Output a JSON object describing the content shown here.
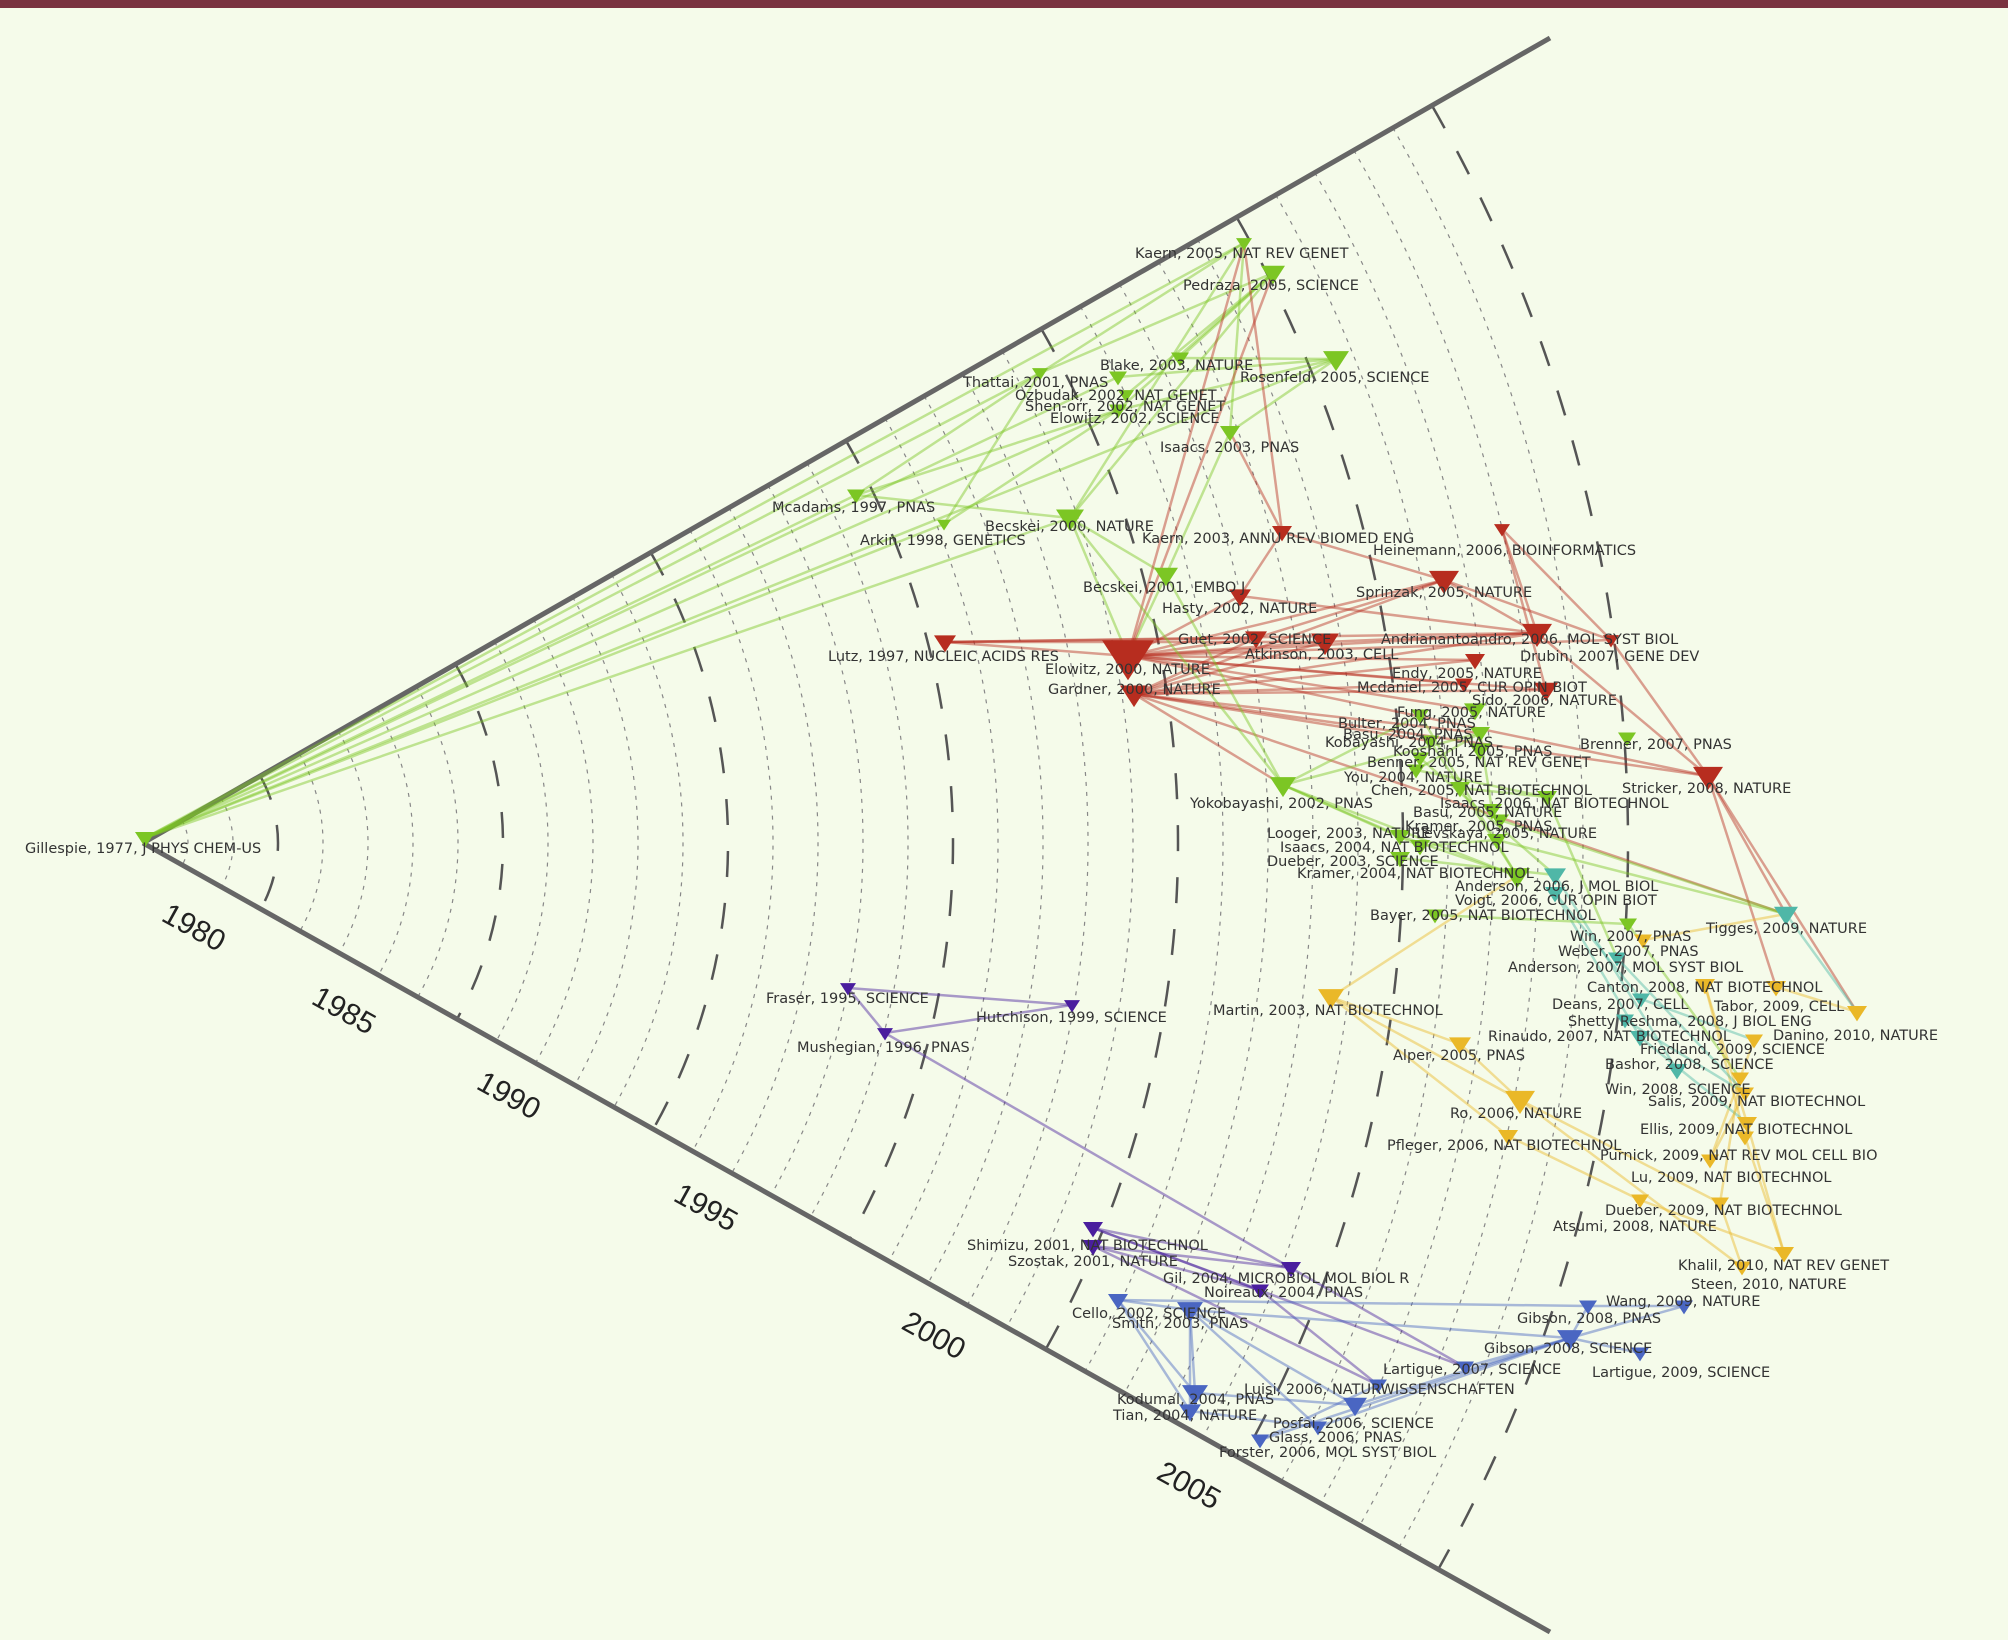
{
  "axis": {
    "year_labels": [
      "1980",
      "1985",
      "1990",
      "1995",
      "2000",
      "2005"
    ],
    "year_start": 1977,
    "year_end": 2010
  },
  "colors": {
    "green": "#7cc624",
    "red": "#b72d1f",
    "yellow": "#eab828",
    "teal": "#4fb7a7",
    "blue": "#4a66c2",
    "purple": "#4a1e9e",
    "bar": "#7a3340",
    "background": "#f5fbea"
  },
  "nodes": [
    {
      "id": "gillespie",
      "label": "Gillespie, 1977, J PHYS CHEM-US",
      "year": 1977,
      "group": "green"
    },
    {
      "id": "kaern05",
      "label": "Kaern, 2005, NAT REV GENET",
      "year": 2005,
      "group": "green"
    },
    {
      "id": "pedraza05",
      "label": "Pedraza, 2005, SCIENCE",
      "year": 2005,
      "group": "green"
    },
    {
      "id": "blake03",
      "label": "Blake, 2003, NATURE",
      "year": 2003,
      "group": "green"
    },
    {
      "id": "rosenfeld05",
      "label": "Rosenfeld, 2005, SCIENCE",
      "year": 2005,
      "group": "green"
    },
    {
      "id": "thattai01",
      "label": "Thattai, 2001, PNAS",
      "year": 2001,
      "group": "green"
    },
    {
      "id": "ozbudak02",
      "label": "Ozbudak, 2002, NAT GENET",
      "year": 2002,
      "group": "green"
    },
    {
      "id": "shenorr02",
      "label": "Shen-orr, 2002, NAT GENET",
      "year": 2002,
      "group": "green"
    },
    {
      "id": "elowitz02",
      "label": "Elowitz, 2002, SCIENCE",
      "year": 2002,
      "group": "green"
    },
    {
      "id": "isaacs03",
      "label": "Isaacs, 2003, PNAS",
      "year": 2003,
      "group": "green"
    },
    {
      "id": "mcadams97",
      "label": "Mcadams, 1997, PNAS",
      "year": 1997,
      "group": "green"
    },
    {
      "id": "becskei00",
      "label": "Becskei, 2000, NATURE",
      "year": 2000,
      "group": "green"
    },
    {
      "id": "arkin98",
      "label": "Arkin, 1998, GENETICS",
      "year": 1998,
      "group": "green"
    },
    {
      "id": "kaern03",
      "label": "Kaern, 2003, ANNU REV BIOMED ENG",
      "year": 2003,
      "group": "red"
    },
    {
      "id": "heinemann06",
      "label": "Heinemann, 2006, BIOINFORMATICS",
      "year": 2006,
      "group": "red"
    },
    {
      "id": "becskei01",
      "label": "Becskei, 2001, EMBO J",
      "year": 2001,
      "group": "green"
    },
    {
      "id": "sprinzak05",
      "label": "Sprinzak, 2005, NATURE",
      "year": 2005,
      "group": "red"
    },
    {
      "id": "hasty02",
      "label": "Hasty, 2002, NATURE",
      "year": 2002,
      "group": "red"
    },
    {
      "id": "guet02",
      "label": "Guet, 2002, SCIENCE",
      "year": 2002,
      "group": "red"
    },
    {
      "id": "andrianantoandro06",
      "label": "Andrianantoandro, 2006, MOL SYST BIOL",
      "year": 2006,
      "group": "red"
    },
    {
      "id": "lutz97",
      "label": "Lutz, 1997, NUCLEIC ACIDS RES",
      "year": 1997,
      "group": "red"
    },
    {
      "id": "atkinson03",
      "label": "Atkinson, 2003, CELL",
      "year": 2003,
      "group": "red"
    },
    {
      "id": "drubin07",
      "label": "Drubin, 2007, GENE DEV",
      "year": 2007,
      "group": "red"
    },
    {
      "id": "elowitz00",
      "label": "Elowitz, 2000, NATURE",
      "year": 2000,
      "group": "red"
    },
    {
      "id": "endy05",
      "label": "Endy, 2005, NATURE",
      "year": 2005,
      "group": "red"
    },
    {
      "id": "gardner00",
      "label": "Gardner, 2000, NATURE",
      "year": 2000,
      "group": "red"
    },
    {
      "id": "mcdaniel05",
      "label": "Mcdaniel, 2005, CUR OPIN BIOT",
      "year": 2005,
      "group": "red"
    },
    {
      "id": "sido06",
      "label": "Sido, 2006, NATURE",
      "year": 2006,
      "group": "red"
    },
    {
      "id": "fung05",
      "label": "Fung, 2005, NATURE",
      "year": 2005,
      "group": "green"
    },
    {
      "id": "bulter04",
      "label": "Bulter, 2004, PNAS",
      "year": 2004,
      "group": "green"
    },
    {
      "id": "basu04",
      "label": "Basu, 2004, PNAS",
      "year": 2004,
      "group": "green"
    },
    {
      "id": "kobayashi04",
      "label": "Kobayashi, 2004, PNAS",
      "year": 2004,
      "group": "green"
    },
    {
      "id": "kooshani05",
      "label": "Kooshani, 2005, PNAS",
      "year": 2005,
      "group": "green"
    },
    {
      "id": "brenner07",
      "label": "Brenner, 2007, PNAS",
      "year": 2007,
      "group": "green"
    },
    {
      "id": "benner05",
      "label": "Benner, 2005, NAT REV GENET",
      "year": 2005,
      "group": "green"
    },
    {
      "id": "you04",
      "label": "You, 2004, NATURE",
      "year": 2004,
      "group": "green"
    },
    {
      "id": "chen05",
      "label": "Chen, 2005, NAT BIOTECHNOL",
      "year": 2005,
      "group": "green"
    },
    {
      "id": "stricker08",
      "label": "Stricker, 2008, NATURE",
      "year": 2008,
      "group": "red"
    },
    {
      "id": "yokobayashi02",
      "label": "Yokobayashi, 2002, PNAS",
      "year": 2002,
      "group": "green"
    },
    {
      "id": "isaacs06",
      "label": "Isaacs, 2006, NAT BIOTECHNOL",
      "year": 2006,
      "group": "green"
    },
    {
      "id": "basu05",
      "label": "Basu, 2005, NATURE",
      "year": 2005,
      "group": "green"
    },
    {
      "id": "kramer05",
      "label": "Kramer, 2005, PNAS",
      "year": 2005,
      "group": "green"
    },
    {
      "id": "looger03",
      "label": "Looger, 2003, NATURE",
      "year": 2003,
      "group": "green"
    },
    {
      "id": "levskaya05",
      "label": "Levskaya, 2005, NATURE",
      "year": 2005,
      "group": "green"
    },
    {
      "id": "isaacs04",
      "label": "Isaacs, 2004, NAT BIOTECHNOL",
      "year": 2004,
      "group": "green"
    },
    {
      "id": "dueber03",
      "label": "Dueber, 2003, SCIENCE",
      "year": 2003,
      "group": "green"
    },
    {
      "id": "kramer04",
      "label": "Kramer, 2004, NAT BIOTECHNOL",
      "year": 2004,
      "group": "green"
    },
    {
      "id": "anderson06",
      "label": "Anderson, 2006, J MOL BIOL",
      "year": 2006,
      "group": "teal"
    },
    {
      "id": "voigt06",
      "label": "Voigt, 2006, CUR OPIN BIOT",
      "year": 2006,
      "group": "teal"
    },
    {
      "id": "bayer05",
      "label": "Bayer, 2005, NAT BIOTECHNOL",
      "year": 2005,
      "group": "green"
    },
    {
      "id": "tigges09",
      "label": "Tigges, 2009, NATURE",
      "year": 2009,
      "group": "teal"
    },
    {
      "id": "win07",
      "label": "Win, 2007, PNAS",
      "year": 2007,
      "group": "green"
    },
    {
      "id": "weber07",
      "label": "Weber, 2007, PNAS",
      "year": 2007,
      "group": "yellow"
    },
    {
      "id": "anderson07",
      "label": "Anderson, 2007, MOL SYST BIOL",
      "year": 2007,
      "group": "teal"
    },
    {
      "id": "fraser95",
      "label": "Fraser, 1995, SCIENCE",
      "year": 1995,
      "group": "purple"
    },
    {
      "id": "hutchison99",
      "label": "Hutchison, 1999, SCIENCE",
      "year": 1999,
      "group": "purple"
    },
    {
      "id": "martin03",
      "label": "Martin, 2003, NAT BIOTECHNOL",
      "year": 2003,
      "group": "yellow"
    },
    {
      "id": "canton08",
      "label": "Canton, 2008, NAT BIOTECHNOL",
      "year": 2008,
      "group": "yellow"
    },
    {
      "id": "deans07",
      "label": "Deans, 2007, CELL",
      "year": 2007,
      "group": "teal"
    },
    {
      "id": "tabor09",
      "label": "Tabor, 2009, CELL",
      "year": 2009,
      "group": "yellow"
    },
    {
      "id": "shetty08",
      "label": "Shetty Reshma, 2008, J BIOL ENG",
      "year": 2008,
      "group": "teal"
    },
    {
      "id": "danino10",
      "label": "Danino, 2010, NATURE",
      "year": 2010,
      "group": "yellow"
    },
    {
      "id": "mushegian96",
      "label": "Mushegian, 1996, PNAS",
      "year": 1996,
      "group": "purple"
    },
    {
      "id": "rinaudo07",
      "label": "Rinaudo, 2007, NAT BIOTECHNOL",
      "year": 2007,
      "group": "teal"
    },
    {
      "id": "friedland09",
      "label": "Friedland, 2009, SCIENCE",
      "year": 2009,
      "group": "yellow"
    },
    {
      "id": "alper05",
      "label": "Alper, 2005, PNAS",
      "year": 2005,
      "group": "yellow"
    },
    {
      "id": "bashor08",
      "label": "Bashor, 2008, SCIENCE",
      "year": 2008,
      "group": "teal"
    },
    {
      "id": "win08",
      "label": "Win, 2008, SCIENCE",
      "year": 2008,
      "group": "yellow"
    },
    {
      "id": "salis09",
      "label": "Salis, 2009, NAT BIOTECHNOL",
      "year": 2009,
      "group": "yellow"
    },
    {
      "id": "ro06",
      "label": "Ro, 2006, NATURE",
      "year": 2006,
      "group": "yellow"
    },
    {
      "id": "ellis09",
      "label": "Ellis, 2009, NAT BIOTECHNOL",
      "year": 2009,
      "group": "yellow"
    },
    {
      "id": "pfleger06",
      "label": "Pfleger, 2006, NAT BIOTECHNOL",
      "year": 2006,
      "group": "yellow"
    },
    {
      "id": "purnick09",
      "label": "Purnick, 2009, NAT REV MOL CELL BIO",
      "year": 2009,
      "group": "yellow"
    },
    {
      "id": "lu09",
      "label": "Lu, 2009, NAT BIOTECHNOL",
      "year": 2009,
      "group": "yellow"
    },
    {
      "id": "dueber09",
      "label": "Dueber, 2009, NAT BIOTECHNOL",
      "year": 2009,
      "group": "yellow"
    },
    {
      "id": "atsumi08",
      "label": "Atsumi, 2008, NATURE",
      "year": 2008,
      "group": "yellow"
    },
    {
      "id": "shimizu01",
      "label": "Shimizu, 2001, NAT BIOTECHNOL",
      "year": 2001,
      "group": "purple"
    },
    {
      "id": "szostak01",
      "label": "Szostak, 2001, NATURE",
      "year": 2001,
      "group": "purple"
    },
    {
      "id": "khalil10",
      "label": "Khalil, 2010, NAT REV GENET",
      "year": 2010,
      "group": "yellow"
    },
    {
      "id": "gil04",
      "label": "Gil, 2004, MICROBIOL MOL BIOL R",
      "year": 2004,
      "group": "purple"
    },
    {
      "id": "steen10",
      "label": "Steen, 2010, NATURE",
      "year": 2010,
      "group": "yellow"
    },
    {
      "id": "noireaux04",
      "label": "Noireaux, 2004, PNAS",
      "year": 2004,
      "group": "purple"
    },
    {
      "id": "wang09",
      "label": "Wang, 2009, NATURE",
      "year": 2009,
      "group": "blue"
    },
    {
      "id": "cello02",
      "label": "Cello, 2002, SCIENCE",
      "year": 2002,
      "group": "blue"
    },
    {
      "id": "gibson08a",
      "label": "Gibson, 2008, PNAS",
      "year": 2008,
      "group": "blue"
    },
    {
      "id": "smith03",
      "label": "Smith, 2003, PNAS",
      "year": 2003,
      "group": "blue"
    },
    {
      "id": "gibson08b",
      "label": "Gibson, 2008, SCIENCE",
      "year": 2008,
      "group": "blue"
    },
    {
      "id": "lartigue07",
      "label": "Lartigue, 2007, SCIENCE",
      "year": 2007,
      "group": "blue"
    },
    {
      "id": "lartigue09",
      "label": "Lartigue, 2009, SCIENCE",
      "year": 2009,
      "group": "blue"
    },
    {
      "id": "luisi06",
      "label": "Luisi, 2006, NATURWISSENSCHAFTEN",
      "year": 2006,
      "group": "blue"
    },
    {
      "id": "kodumal04",
      "label": "Kodumal, 2004, PNAS",
      "year": 2004,
      "group": "blue"
    },
    {
      "id": "tian04",
      "label": "Tian, 2004, NATURE",
      "year": 2004,
      "group": "blue"
    },
    {
      "id": "posfai06",
      "label": "Posfai, 2006, SCIENCE",
      "year": 2006,
      "group": "blue"
    },
    {
      "id": "glass06",
      "label": "Glass, 2006, PNAS",
      "year": 2006,
      "group": "blue"
    },
    {
      "id": "forster06",
      "label": "Forster, 2006, MOL SYST BIOL",
      "year": 2006,
      "group": "blue"
    }
  ]
}
